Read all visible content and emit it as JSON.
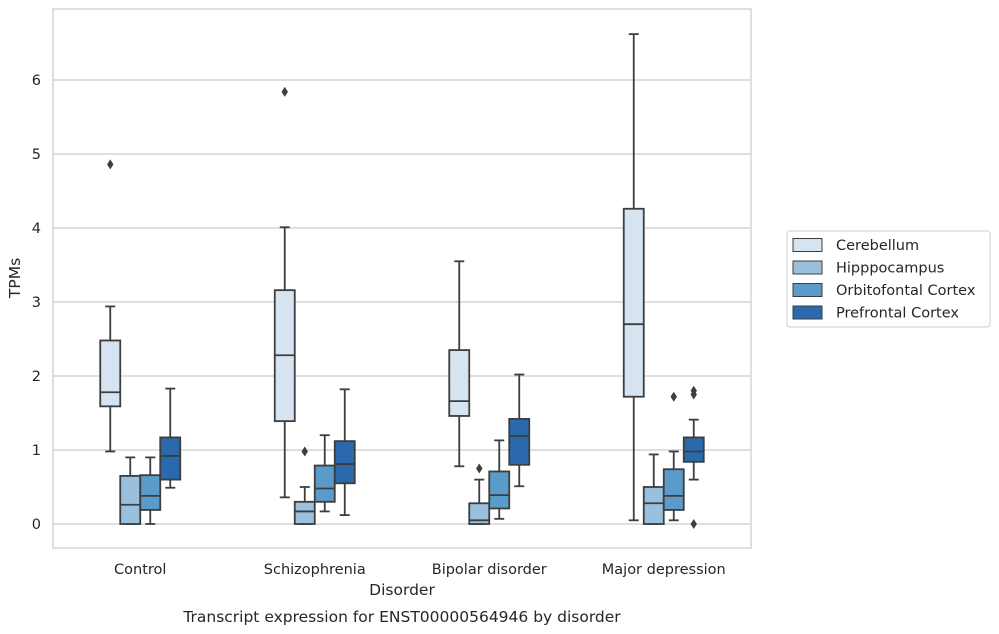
{
  "chart_data": {
    "type": "box",
    "caption": "Transcript expression for ENST00000564946 by disorder",
    "xlabel": "Disorder",
    "ylabel": "TPMs",
    "ylim": [
      -0.32,
      7.0
    ],
    "yticks": [
      0,
      1,
      2,
      3,
      4,
      5,
      6
    ],
    "grid": "horizontal",
    "legend_position": "right",
    "categories": [
      "Control",
      "Schizophrenia",
      "Bipolar disorder",
      "Major depression"
    ],
    "series": [
      {
        "name": "Cerebellum",
        "color": "#d6e4f2",
        "boxes": [
          {
            "whisker_low": 0.98,
            "q1": 1.59,
            "median": 1.78,
            "q3": 2.48,
            "whisker_high": 2.94,
            "outliers": [
              4.86
            ]
          },
          {
            "whisker_low": 0.36,
            "q1": 1.39,
            "median": 2.28,
            "q3": 3.16,
            "whisker_high": 4.01,
            "outliers": [
              5.84
            ]
          },
          {
            "whisker_low": 0.78,
            "q1": 1.46,
            "median": 1.66,
            "q3": 2.35,
            "whisker_high": 3.55,
            "outliers": []
          },
          {
            "whisker_low": 0.05,
            "q1": 1.72,
            "median": 2.7,
            "q3": 4.26,
            "whisker_high": 6.62,
            "outliers": []
          }
        ]
      },
      {
        "name": "Hipppocampus",
        "color": "#99c1de",
        "boxes": [
          {
            "whisker_low": 0.0,
            "q1": 0.0,
            "median": 0.26,
            "q3": 0.65,
            "whisker_high": 0.9,
            "outliers": []
          },
          {
            "whisker_low": 0.0,
            "q1": 0.0,
            "median": 0.17,
            "q3": 0.3,
            "whisker_high": 0.5,
            "outliers": [
              0.98
            ]
          },
          {
            "whisker_low": 0.0,
            "q1": 0.0,
            "median": 0.05,
            "q3": 0.28,
            "whisker_high": 0.6,
            "outliers": [
              0.75
            ]
          },
          {
            "whisker_low": 0.0,
            "q1": 0.0,
            "median": 0.28,
            "q3": 0.5,
            "whisker_high": 0.94,
            "outliers": []
          }
        ]
      },
      {
        "name": "Orbitofontal Cortex",
        "color": "#5a9bc9",
        "boxes": [
          {
            "whisker_low": 0.0,
            "q1": 0.19,
            "median": 0.38,
            "q3": 0.66,
            "whisker_high": 0.9,
            "outliers": []
          },
          {
            "whisker_low": 0.17,
            "q1": 0.3,
            "median": 0.48,
            "q3": 0.79,
            "whisker_high": 1.2,
            "outliers": []
          },
          {
            "whisker_low": 0.07,
            "q1": 0.21,
            "median": 0.39,
            "q3": 0.71,
            "whisker_high": 1.13,
            "outliers": []
          },
          {
            "whisker_low": 0.05,
            "q1": 0.19,
            "median": 0.38,
            "q3": 0.74,
            "whisker_high": 0.98,
            "outliers": [
              1.72
            ]
          }
        ]
      },
      {
        "name": "Prefrontal Cortex",
        "color": "#2a69ab",
        "boxes": [
          {
            "whisker_low": 0.49,
            "q1": 0.6,
            "median": 0.92,
            "q3": 1.17,
            "whisker_high": 1.83,
            "outliers": []
          },
          {
            "whisker_low": 0.12,
            "q1": 0.55,
            "median": 0.81,
            "q3": 1.12,
            "whisker_high": 1.82,
            "outliers": []
          },
          {
            "whisker_low": 0.51,
            "q1": 0.8,
            "median": 1.19,
            "q3": 1.42,
            "whisker_high": 2.02,
            "outliers": []
          },
          {
            "whisker_low": 0.6,
            "q1": 0.84,
            "median": 0.98,
            "q3": 1.17,
            "whisker_high": 1.41,
            "outliers": [
              1.8,
              1.75,
              0.0
            ]
          }
        ]
      }
    ]
  }
}
